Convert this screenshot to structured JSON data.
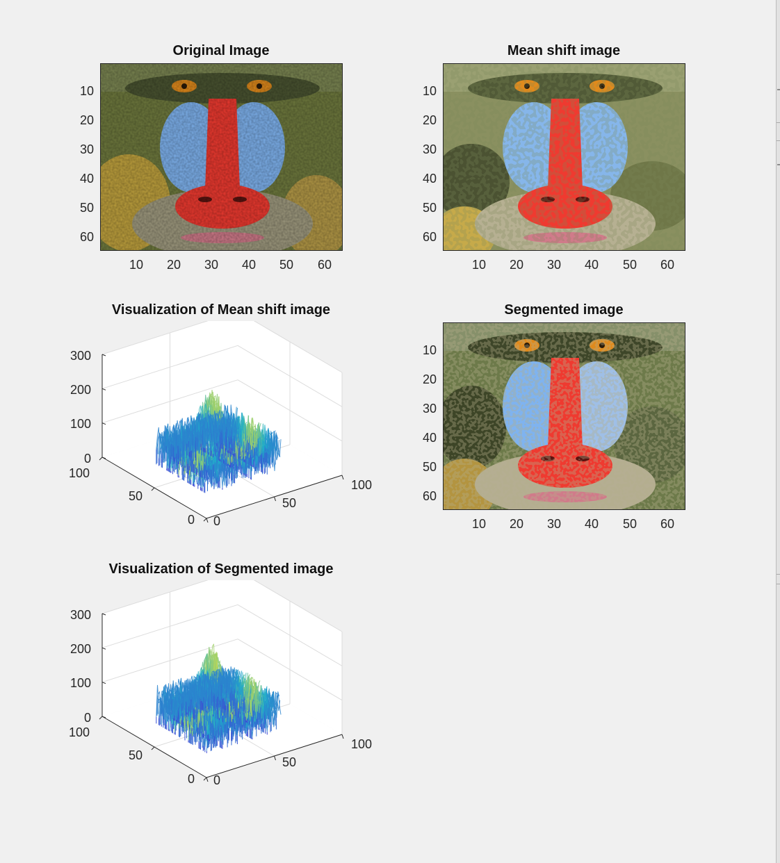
{
  "window": {
    "background": "#f0f0f0"
  },
  "panels": {
    "original": {
      "title": "Original Image",
      "yticks": [
        "10",
        "20",
        "30",
        "40",
        "50",
        "60"
      ],
      "xticks": [
        "10",
        "20",
        "30",
        "40",
        "50",
        "60"
      ]
    },
    "meanshift": {
      "title": "Mean shift image",
      "yticks": [
        "10",
        "20",
        "30",
        "40",
        "50",
        "60"
      ],
      "xticks": [
        "10",
        "20",
        "30",
        "40",
        "50",
        "60"
      ]
    },
    "segmented": {
      "title": "Segmented image",
      "yticks": [
        "10",
        "20",
        "30",
        "40",
        "50",
        "60"
      ],
      "xticks": [
        "10",
        "20",
        "30",
        "40",
        "50",
        "60"
      ]
    },
    "viz_meanshift": {
      "title": "Visualization of Mean shift image",
      "zticks": [
        "300",
        "200",
        "100",
        "0"
      ],
      "yticks": [
        "100",
        "50",
        "0"
      ],
      "xticks": [
        "0",
        "50",
        "100"
      ]
    },
    "viz_segmented": {
      "title": "Visualization of Segmented image",
      "zticks": [
        "300",
        "200",
        "100",
        "0"
      ],
      "yticks": [
        "100",
        "50",
        "0"
      ],
      "xticks": [
        "0",
        "50",
        "100"
      ]
    }
  },
  "colors": {
    "axis": "#262626",
    "fur_green": "#6f7a3e",
    "fur_dark": "#3f4a2a",
    "cheek_blue": "#7fb3ef",
    "nose_red": "#ef3a30",
    "eye_orange": "#e08a1c",
    "fur_yellow": "#d6b23f",
    "parula_low": "#3e3fd6",
    "parula_mid": "#1fb0c9",
    "parula_high": "#f6e52a"
  },
  "chart_data": [
    {
      "type": "heatmap",
      "title": "Original Image",
      "xlim": [
        0.5,
        64.5
      ],
      "ylim": [
        0.5,
        64.5
      ],
      "xticks": [
        10,
        20,
        30,
        40,
        50,
        60
      ],
      "yticks": [
        10,
        20,
        30,
        40,
        50,
        60
      ]
    },
    {
      "type": "heatmap",
      "title": "Mean shift image",
      "xlim": [
        0.5,
        64.5
      ],
      "ylim": [
        0.5,
        64.5
      ],
      "xticks": [
        10,
        20,
        30,
        40,
        50,
        60
      ],
      "yticks": [
        10,
        20,
        30,
        40,
        50,
        60
      ]
    },
    {
      "type": "heatmap",
      "title": "Segmented image",
      "xlim": [
        0.5,
        64.5
      ],
      "ylim": [
        0.5,
        64.5
      ],
      "xticks": [
        10,
        20,
        30,
        40,
        50,
        60
      ],
      "yticks": [
        10,
        20,
        30,
        40,
        50,
        60
      ]
    },
    {
      "type": "surface-mesh",
      "title": "Visualization of Mean shift image",
      "xlim": [
        0,
        100
      ],
      "ylim": [
        0,
        100
      ],
      "zlim": [
        0,
        300
      ],
      "xticks": [
        0,
        50,
        100
      ],
      "yticks": [
        0,
        50,
        100
      ],
      "zticks": [
        0,
        100,
        200,
        300
      ],
      "grid": true
    },
    {
      "type": "surface-mesh",
      "title": "Visualization of Segmented image",
      "xlim": [
        0,
        100
      ],
      "ylim": [
        0,
        100
      ],
      "zlim": [
        0,
        300
      ],
      "xticks": [
        0,
        50,
        100
      ],
      "yticks": [
        0,
        50,
        100
      ],
      "zticks": [
        0,
        100,
        200,
        300
      ],
      "grid": true
    }
  ]
}
